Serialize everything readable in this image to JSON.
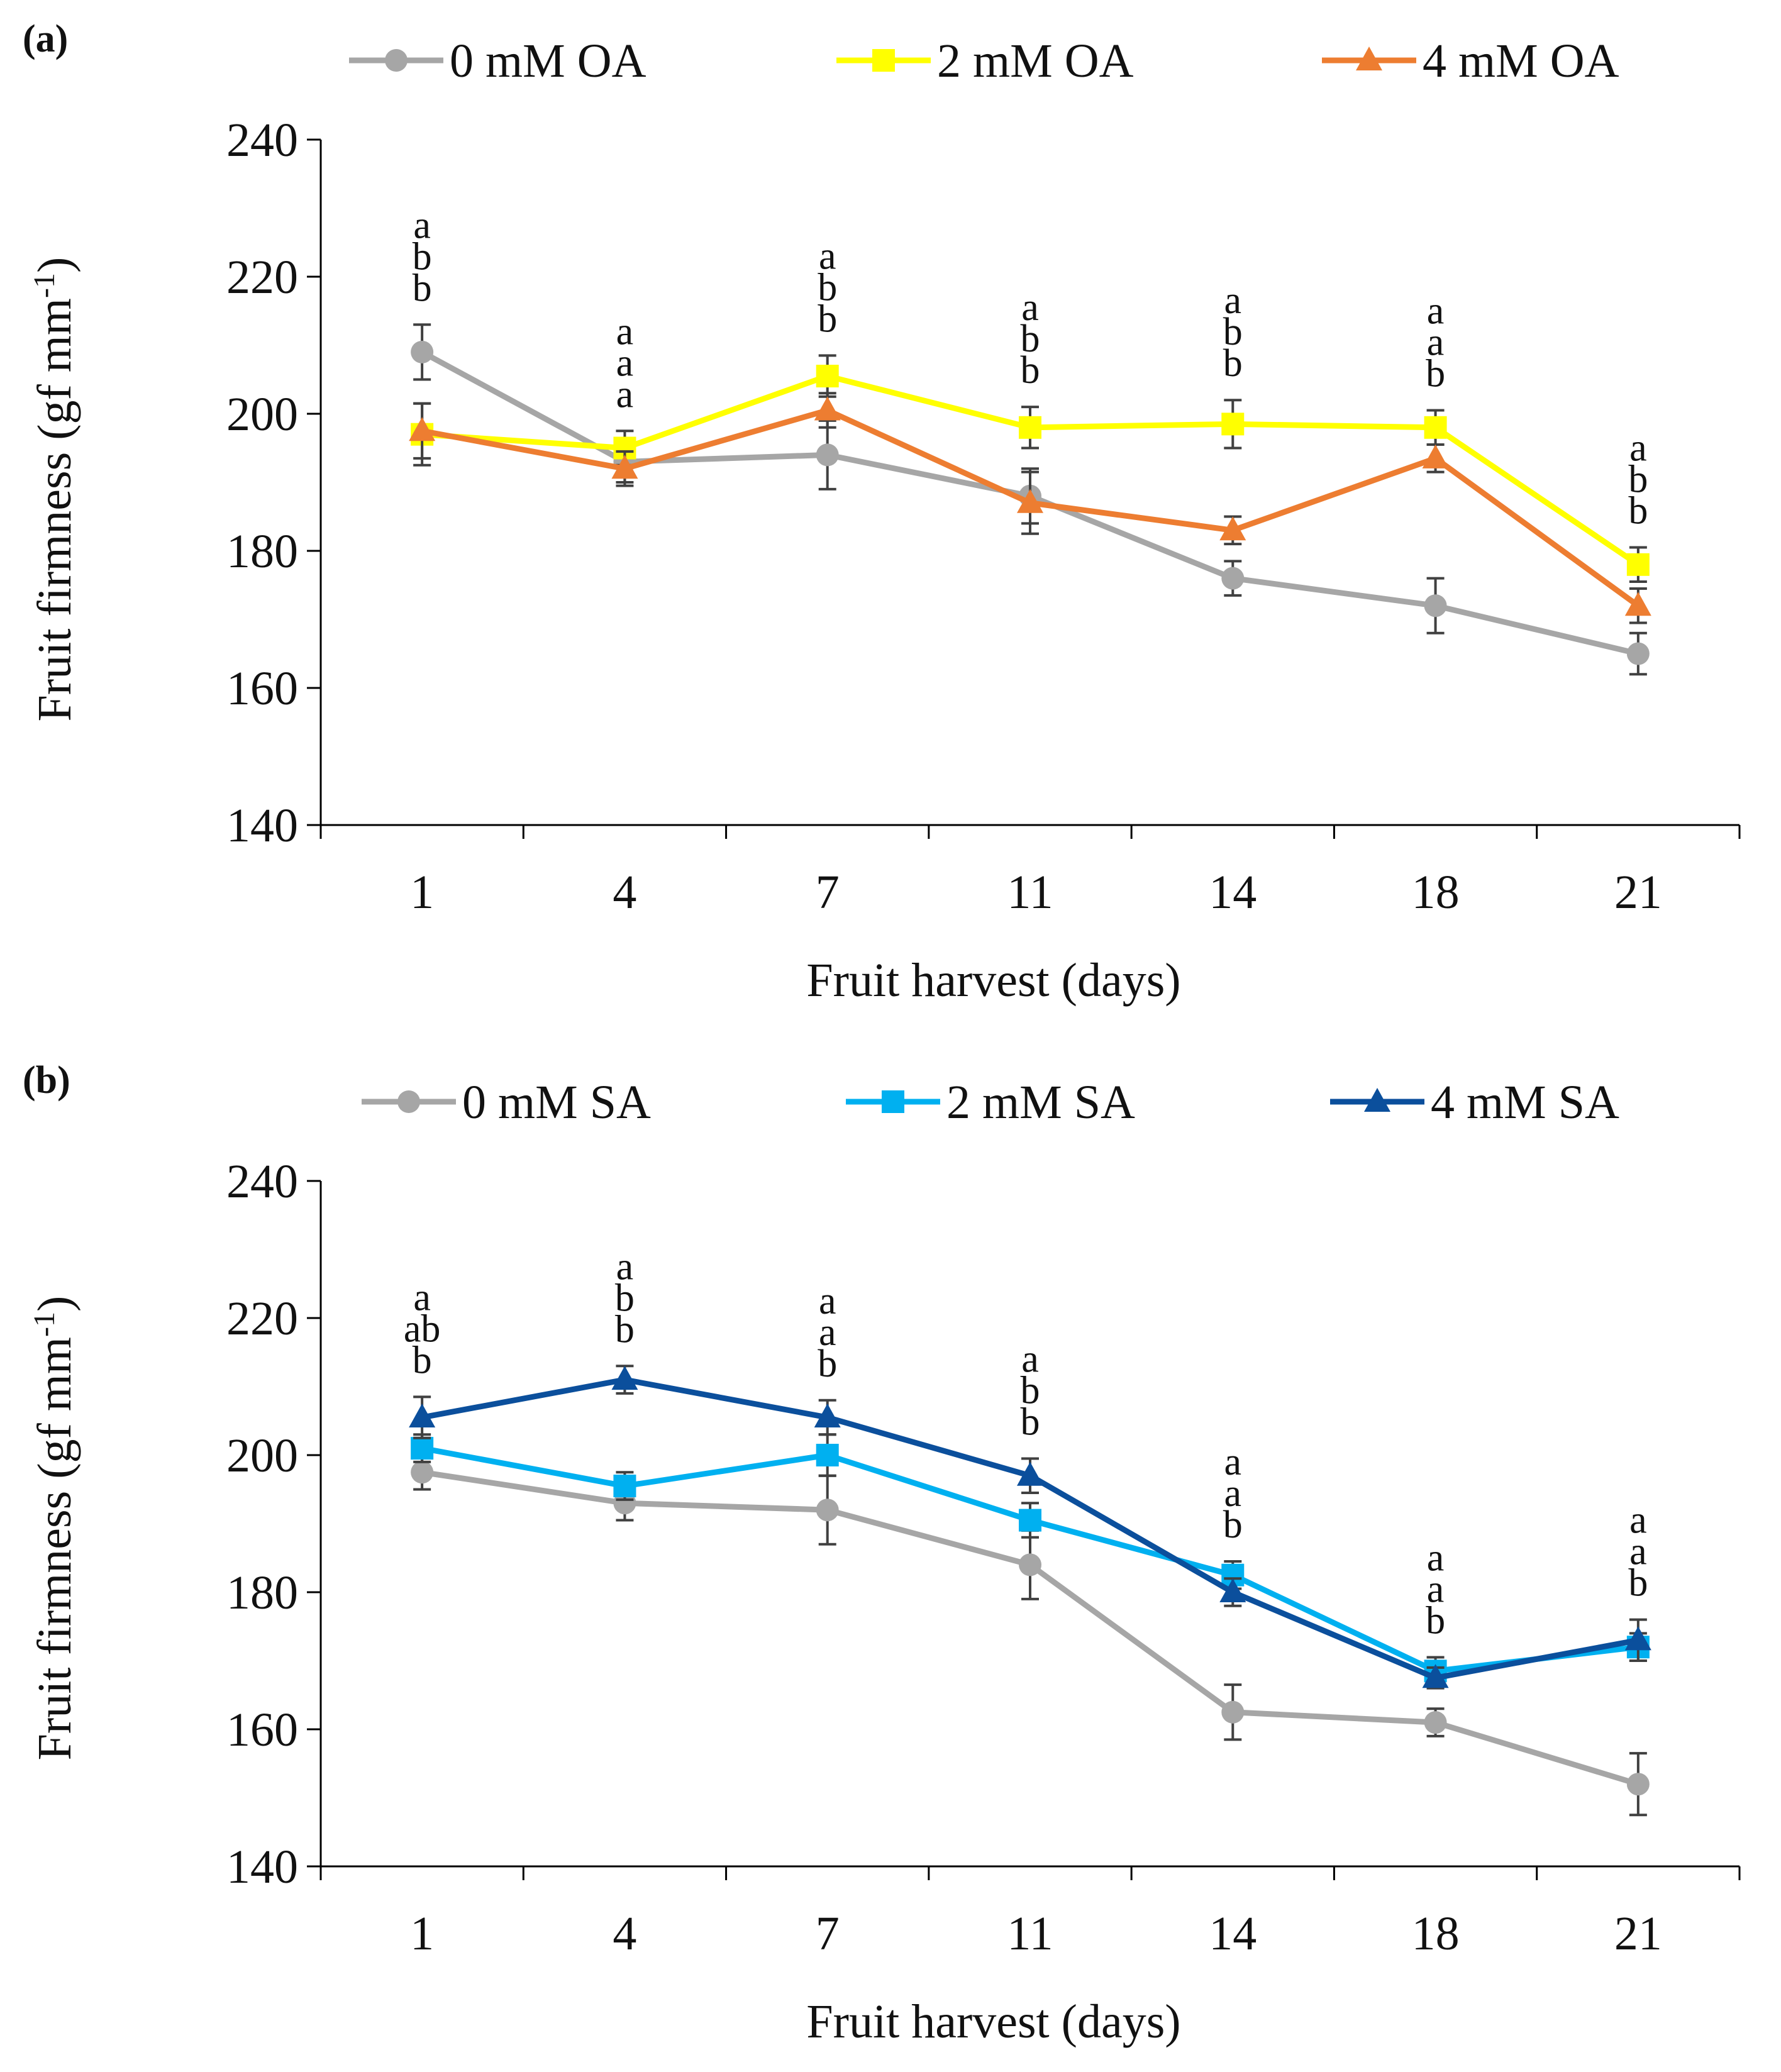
{
  "chart_data": [
    {
      "panel_label": "(a)",
      "type": "line",
      "title": "",
      "xlabel": "Fruit harvest (days)",
      "ylabel": "Fruit firmness (gf mm",
      "ylabel_unit_exponent": "-1",
      "ylabel_close": ")",
      "categories": [
        "1",
        "4",
        "7",
        "11",
        "14",
        "18",
        "21"
      ],
      "ylim": [
        140,
        240
      ],
      "yticks": [
        140,
        160,
        180,
        200,
        220,
        240
      ],
      "grid": false,
      "legend_position": "top",
      "series": [
        {
          "name": "0 mM OA",
          "color": "#a6a6a6",
          "marker": "circle",
          "values": [
            209,
            193,
            194,
            188,
            176,
            172,
            165
          ],
          "errors": [
            4,
            3,
            5,
            4,
            2.5,
            4,
            3
          ]
        },
        {
          "name": "2 mM OA",
          "color": "#ffff00",
          "marker": "square",
          "values": [
            197,
            195,
            205.5,
            198,
            198.5,
            198,
            178
          ],
          "errors": [
            4.5,
            2.5,
            3,
            3,
            3.5,
            2.5,
            2.5
          ]
        },
        {
          "name": "4 mM OA",
          "color": "#ed7d31",
          "marker": "triangle",
          "values": [
            197.5,
            192,
            200.5,
            187,
            183,
            193.5,
            172
          ],
          "errors": [
            4,
            2.5,
            2.5,
            4.5,
            2,
            2,
            2.5
          ]
        }
      ],
      "annotations": [
        [
          "a",
          "b",
          "b"
        ],
        [
          "a",
          "a",
          "a"
        ],
        [
          "a",
          "b",
          "b"
        ],
        [
          "a",
          "b",
          "b"
        ],
        [
          "a",
          "b",
          "b"
        ],
        [
          "a",
          "a",
          "b"
        ],
        [
          "a",
          "b",
          "b"
        ]
      ]
    },
    {
      "panel_label": "(b)",
      "type": "line",
      "title": "",
      "xlabel": "Fruit harvest (days)",
      "ylabel": "Fruit firmness (gf mm",
      "ylabel_unit_exponent": "-1",
      "ylabel_close": ")",
      "categories": [
        "1",
        "4",
        "7",
        "11",
        "14",
        "18",
        "21"
      ],
      "ylim": [
        140,
        240
      ],
      "yticks": [
        140,
        160,
        180,
        200,
        220,
        240
      ],
      "grid": false,
      "legend_position": "top",
      "series": [
        {
          "name": "0 mM SA",
          "color": "#a6a6a6",
          "marker": "circle",
          "values": [
            197.5,
            193,
            192,
            184,
            162.5,
            161,
            152
          ],
          "errors": [
            2.5,
            2.5,
            5,
            5,
            4,
            2,
            4.5
          ]
        },
        {
          "name": "2 mM SA",
          "color": "#00b0f0",
          "marker": "square",
          "values": [
            201,
            195.5,
            200,
            190.5,
            182.5,
            168.5,
            172
          ],
          "errors": [
            2,
            2,
            3,
            2.5,
            2,
            2,
            2
          ]
        },
        {
          "name": "4 mM SA",
          "color": "#0b4f9c",
          "marker": "triangle",
          "values": [
            205.5,
            211,
            205.5,
            197,
            180,
            167.5,
            173
          ],
          "errors": [
            3,
            2,
            2.5,
            2.5,
            2,
            1.5,
            3
          ]
        }
      ],
      "annotations": [
        [
          "a",
          "ab",
          "b"
        ],
        [
          "a",
          "b",
          "b"
        ],
        [
          "a",
          "a",
          "b"
        ],
        [
          "a",
          "b",
          "b"
        ],
        [
          "a",
          "a",
          "b"
        ],
        [
          "a",
          "a",
          "b"
        ],
        [
          "a",
          "a",
          "b"
        ]
      ]
    }
  ]
}
